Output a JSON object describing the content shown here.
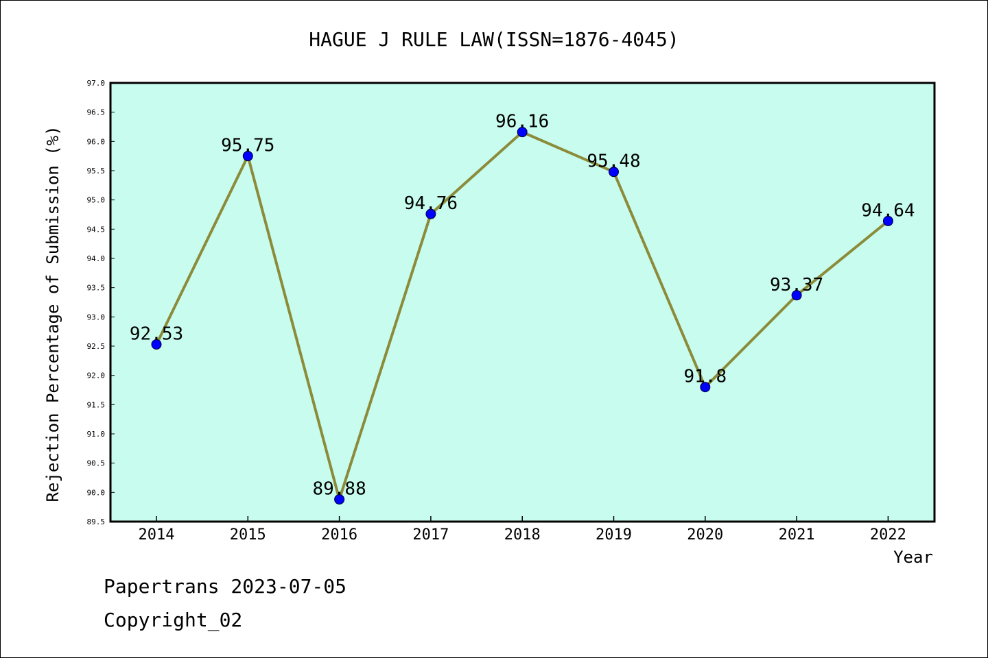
{
  "chart_data": {
    "type": "line",
    "title": "HAGUE J RULE LAW(ISSN=1876-4045)",
    "xlabel": "Year",
    "ylabel": "Rejection Percentage of Submission (%)",
    "categories": [
      "2014",
      "2015",
      "2016",
      "2017",
      "2018",
      "2019",
      "2020",
      "2021",
      "2022"
    ],
    "series": [
      {
        "values": [
          92.53,
          95.75,
          89.88,
          94.76,
          96.16,
          95.48,
          91.8,
          93.37,
          94.64
        ],
        "labels": [
          "92.53",
          "95.75",
          "89.88",
          "94.76",
          "96.16",
          "95.48",
          "91.8",
          "93.37",
          "94.64"
        ],
        "line_color": "#8b8b3a",
        "marker_color": "#0000ff"
      }
    ],
    "ylim": [
      89.5,
      97.0
    ],
    "yticks": [
      "89.5",
      "90.0",
      "90.5",
      "91.0",
      "91.5",
      "92.0",
      "92.5",
      "93.0",
      "93.5",
      "94.0",
      "94.5",
      "95.0",
      "95.5",
      "96.0",
      "96.5",
      "97.0"
    ],
    "grid": false,
    "background_color": "#c8fcee"
  },
  "footer": {
    "line1": "Papertrans 2023-07-05",
    "line2": "Copyright_02"
  }
}
